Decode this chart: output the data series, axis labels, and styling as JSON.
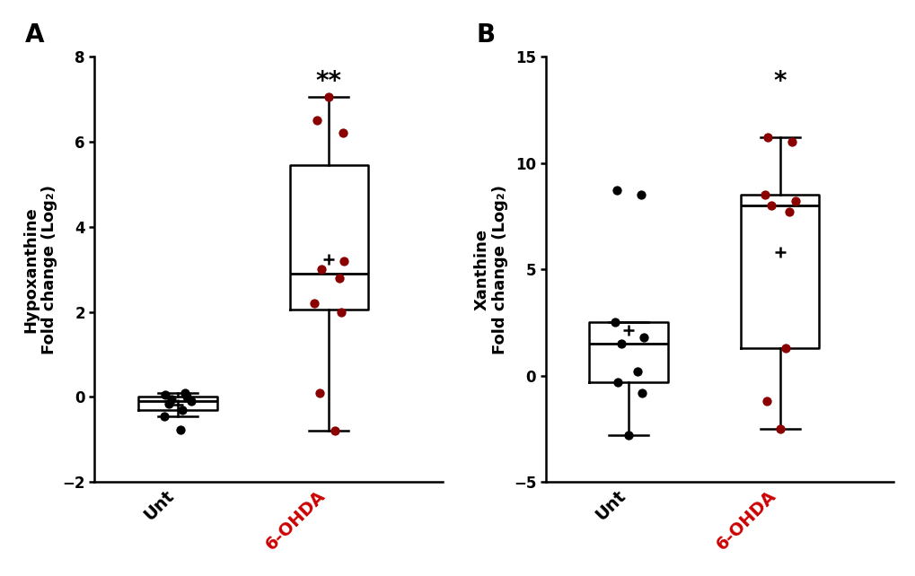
{
  "panel_A": {
    "title": "A",
    "ylabel_line1": "Hypoxanthine",
    "ylabel_line2": "Fold change (Log₂)",
    "ylim": [
      -2,
      8
    ],
    "yticks": [
      -2,
      0,
      2,
      4,
      6,
      8
    ],
    "unt_data": [
      0.1,
      0.05,
      0.0,
      -0.05,
      -0.1,
      -0.15,
      -0.3,
      -0.45,
      -0.78
    ],
    "ohda_data": [
      7.05,
      6.5,
      6.2,
      3.2,
      3.0,
      2.8,
      2.2,
      2.0,
      0.1,
      -0.8
    ],
    "unt_jitter": [
      0.05,
      -0.08,
      0.06,
      -0.04,
      0.09,
      -0.06,
      0.03,
      -0.09,
      0.02
    ],
    "ohda_jitter": [
      0.0,
      -0.08,
      0.09,
      0.1,
      -0.05,
      0.07,
      -0.1,
      0.08,
      -0.06,
      0.04
    ],
    "significance": "**",
    "unt_color": "#000000",
    "ohda_color": "#8B0000",
    "ohda_label_color": "#CC0000"
  },
  "panel_B": {
    "title": "B",
    "ylabel_line1": "Xanthine",
    "ylabel_line2": "Fold change (Log₂)",
    "ylim": [
      -5,
      15
    ],
    "yticks": [
      -5,
      0,
      5,
      10,
      15
    ],
    "unt_data": [
      8.7,
      8.5,
      2.5,
      1.8,
      1.5,
      0.2,
      -0.3,
      -0.8,
      -2.8
    ],
    "ohda_data": [
      11.2,
      11.0,
      8.5,
      8.2,
      8.0,
      7.7,
      1.3,
      -1.2,
      -2.5
    ],
    "unt_jitter": [
      -0.08,
      0.08,
      -0.09,
      0.1,
      -0.05,
      0.06,
      -0.07,
      0.09,
      0.0
    ],
    "ohda_jitter": [
      -0.08,
      0.08,
      -0.1,
      0.1,
      -0.06,
      0.06,
      0.04,
      -0.09,
      0.0
    ],
    "significance": "*",
    "unt_color": "#000000",
    "ohda_color": "#8B0000",
    "ohda_label_color": "#CC0000"
  },
  "box_width": 0.52,
  "dot_size": 55,
  "linewidth": 1.8,
  "background_color": "#ffffff",
  "positions": [
    1,
    2
  ],
  "xlim": [
    0.45,
    2.75
  ]
}
